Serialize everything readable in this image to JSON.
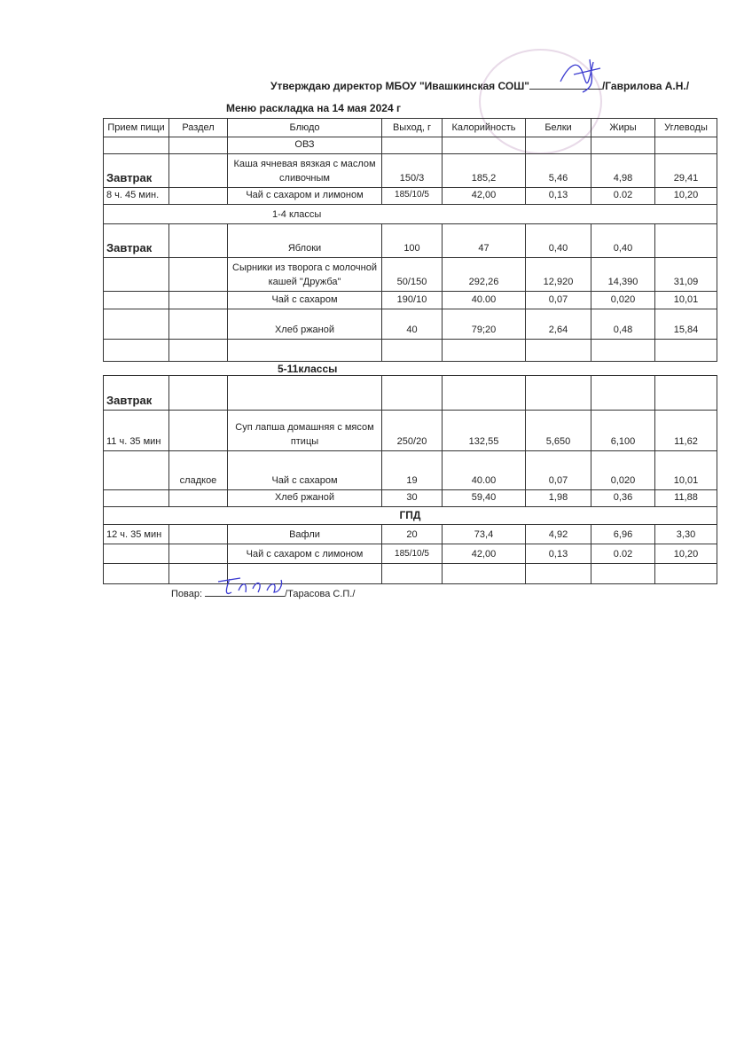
{
  "header": {
    "approve_text": "Утверждаю директор МБОУ \"Ивашкинская СОШ\"",
    "director_name": "/Гаврилова А.Н./",
    "title": "Меню раскладка на 14 мая  2024 г"
  },
  "columns": [
    "Прием пищи",
    "Раздел",
    "Блюдо",
    "Выход, г",
    "Калорийность",
    "Белки",
    "Жиры",
    "Углеводы"
  ],
  "table1": [
    {
      "cells": [
        "",
        "",
        "ОВЗ",
        "",
        "",
        "",
        "",
        ""
      ]
    },
    {
      "cells": [
        "Завтрак",
        "",
        "Каша ячневая вязкая с маслом сливочным",
        "150/3",
        "185,2",
        "5,46",
        "4,98",
        "29,41"
      ],
      "meal_big": true
    },
    {
      "cells": [
        "8 ч. 45 мин.",
        "",
        "Чай с сахаром и лимоном",
        "185/10/5",
        "42,00",
        "0,13",
        "0.02",
        "10,20"
      ]
    },
    {
      "section": "1-4 классы"
    },
    {
      "cells": [
        "Завтрак",
        "",
        "Яблоки",
        "100",
        "47",
        "0,40",
        "0,40",
        ""
      ],
      "meal_big": true
    },
    {
      "cells": [
        "",
        "",
        "Сырники из творога с молочной кашей \"Дружба\"",
        "50/150",
        "292,26",
        "12,920",
        "14,390",
        "31,09"
      ]
    },
    {
      "cells": [
        "",
        "",
        "Чай с сахаром",
        "190/10",
        "40.00",
        "0,07",
        "0,020",
        "10,01"
      ]
    },
    {
      "cells": [
        "",
        "",
        "Хлеб ржаной",
        "40",
        "79;20",
        "2,64",
        "0,48",
        "15,84"
      ]
    },
    {
      "cells": [
        "",
        "",
        "",
        "",
        "",
        "",
        "",
        ""
      ]
    }
  ],
  "section2_label": "5-11классы",
  "table2": [
    {
      "cells": [
        "Завтрак",
        "",
        "",
        "",
        "",
        "",
        "",
        ""
      ],
      "meal_big": true
    },
    {
      "cells": [
        "11 ч. 35 мин",
        "",
        "Суп лапша домашняя с мясом птицы",
        "250/20",
        "132,55",
        "5,650",
        "6,100",
        "11,62"
      ]
    },
    {
      "cells": [
        "",
        "сладкое",
        "Чай с сахаром",
        "19",
        "40.00",
        "0,07",
        "0,020",
        "10,01"
      ]
    },
    {
      "cells": [
        "",
        "",
        "Хлеб ржаной",
        "30",
        "59,40",
        "1,98",
        "0,36",
        "11,88"
      ]
    },
    {
      "section": "ГПД",
      "bold": true
    },
    {
      "cells": [
        "12 ч. 35 мин",
        "",
        "Вафли",
        "20",
        "73,4",
        "4,92",
        "6,96",
        "3,30"
      ]
    },
    {
      "cells": [
        "",
        "",
        "Чай с сахаром с лимоном",
        "185/10/5",
        "42,00",
        "0,13",
        "0.02",
        "10,20"
      ]
    },
    {
      "cells": [
        "",
        "",
        "",
        "",
        "",
        "",
        "",
        ""
      ]
    }
  ],
  "footer": {
    "cook_label": "Повар:",
    "cook_name": "/Тарасова С.П./"
  },
  "colors": {
    "ink": "#222222",
    "signature": "#3a3ad0",
    "stamp": "#be96be"
  }
}
